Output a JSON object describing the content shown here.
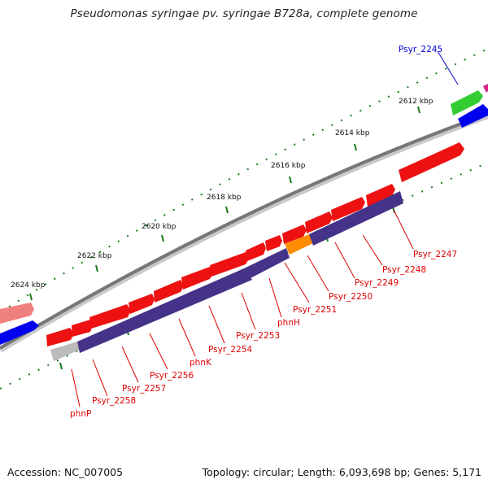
{
  "title": "Pseudomonas syringae pv. syringae B728a, complete genome",
  "footer": {
    "accession": "Accession: NC_007005",
    "summary": "Topology: circular; Length: 6,093,698 bp; Genes: 5,171"
  },
  "colors": {
    "gene_forward": "#ee1111",
    "gene_reverse_block": "#443388",
    "backbone": "#777777",
    "tick": "#1a7a1a",
    "label_red": "#dd0000",
    "label_blue": "#0000cc",
    "highlight_orange": "#ff8c00"
  },
  "scale": {
    "ticks": [
      "2612 kbp",
      "2614 kbp",
      "2616 kbp",
      "2618 kbp",
      "2620 kbp",
      "2622 kbp",
      "2624 kbp"
    ]
  },
  "genes": {
    "top_label": "Psyr_2245",
    "labels": [
      "Psyr_2247",
      "Psyr_2248",
      "Psyr_2249",
      "Psyr_2250",
      "Psyr_2251",
      "phnH",
      "Psyr_2253",
      "Psyr_2254",
      "phnK",
      "Psyr_2256",
      "Psyr_2257",
      "Psyr_2258",
      "phnP"
    ]
  }
}
